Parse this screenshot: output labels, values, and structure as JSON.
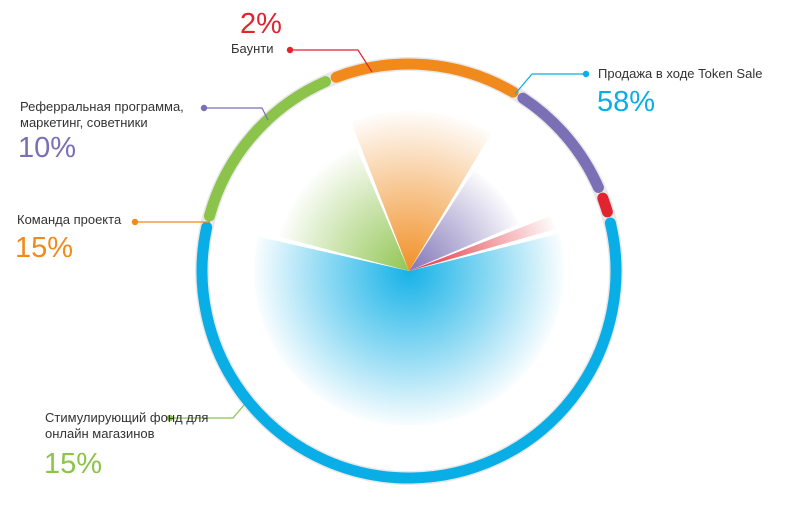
{
  "chart_data": {
    "type": "pie",
    "categories": [
      "Продажа в ходе Token Sale",
      "Стимулирующий фонд для онлайн магазинов",
      "Команда проекта",
      "Реферральная программа, маркетинг, советники",
      "Баунти"
    ],
    "values": [
      58,
      15,
      15,
      10,
      2
    ],
    "colors": [
      "#0aaee6",
      "#8cc34b",
      "#f08a1c",
      "#7b6fb5",
      "#e02430"
    ],
    "percent_labels": [
      "58%",
      "15%",
      "15%",
      "10%",
      "2%"
    ],
    "title": "",
    "legend": "callouts around the ring"
  }
}
